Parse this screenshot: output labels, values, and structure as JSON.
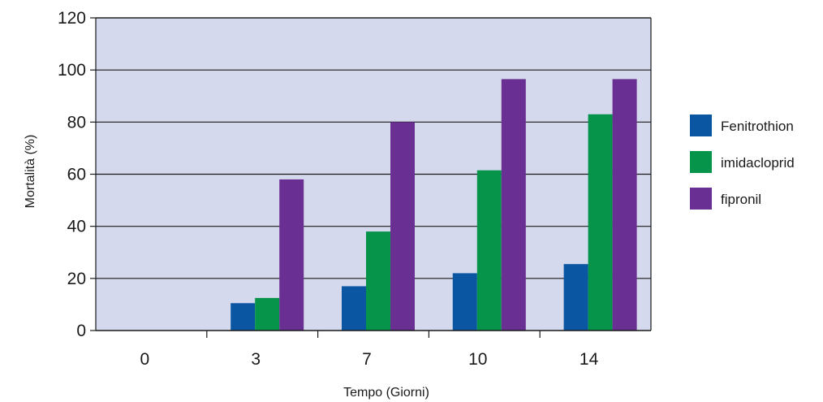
{
  "chart_data": {
    "type": "bar",
    "title": "",
    "xlabel": "Tempo (Giorni)",
    "ylabel": "Mortalità (%)",
    "categories": [
      "0",
      "3",
      "7",
      "10",
      "14"
    ],
    "ylim": [
      0,
      120
    ],
    "yticks": [
      0,
      20,
      40,
      60,
      80,
      100,
      120
    ],
    "grid": true,
    "legend_position": "right",
    "plot_background": "#d5d9ed",
    "series": [
      {
        "name": "Fenitrothion",
        "color": "#0a56a2",
        "values": [
          0,
          10.5,
          17,
          22,
          25.5
        ]
      },
      {
        "name": "imidacloprid",
        "color": "#05944a",
        "values": [
          0,
          12.5,
          38,
          61.5,
          83
        ]
      },
      {
        "name": "fipronil",
        "color": "#6a2f92",
        "values": [
          0,
          58,
          80,
          96.5,
          96.5
        ]
      }
    ]
  }
}
